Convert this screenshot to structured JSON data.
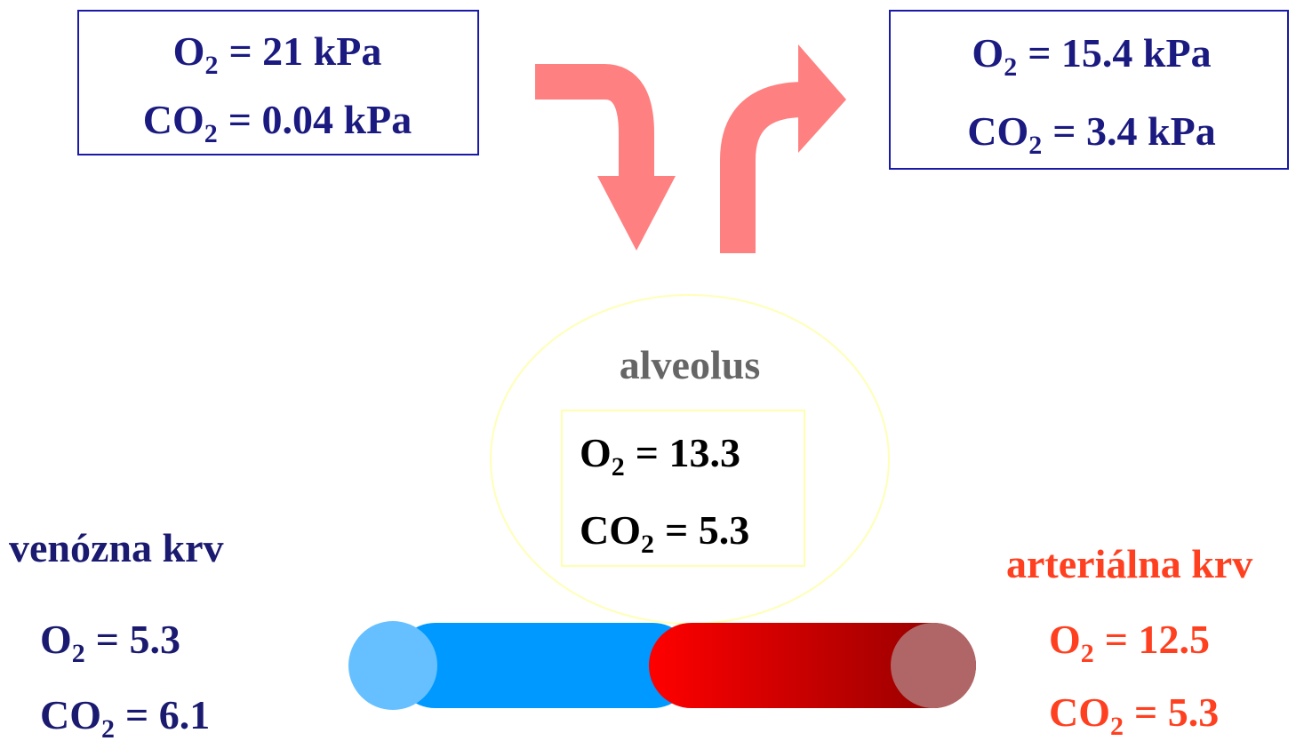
{
  "inhaled": {
    "lines": [
      {
        "symbol": "O",
        "subscript": "2",
        "value": "= 21 kPa"
      },
      {
        "symbol": "CO",
        "subscript": "2",
        "value": "= 0.04 kPa"
      }
    ]
  },
  "exhaled": {
    "lines": [
      {
        "symbol": "O",
        "subscript": "2",
        "value": "= 15.4 kPa"
      },
      {
        "symbol": "CO",
        "subscript": "2",
        "value": "= 3.4 kPa"
      }
    ]
  },
  "alveolus": {
    "label": "alveolus",
    "lines": [
      {
        "symbol": "O",
        "subscript": "2",
        "value": "= 13.3"
      },
      {
        "symbol": "CO",
        "subscript": "2",
        "value": "= 5.3"
      }
    ]
  },
  "venous": {
    "label": "venózna krv",
    "lines": [
      {
        "symbol": "O",
        "subscript": "2",
        "value": "= 5.3"
      },
      {
        "symbol": "CO",
        "subscript": "2",
        "value": "= 6.1"
      }
    ]
  },
  "arterial": {
    "label": "arteriálna krv",
    "lines": [
      {
        "symbol": "O",
        "subscript": "2",
        "value": "= 12.5"
      },
      {
        "symbol": "CO",
        "subscript": "2",
        "value": "= 5.3"
      }
    ]
  }
}
